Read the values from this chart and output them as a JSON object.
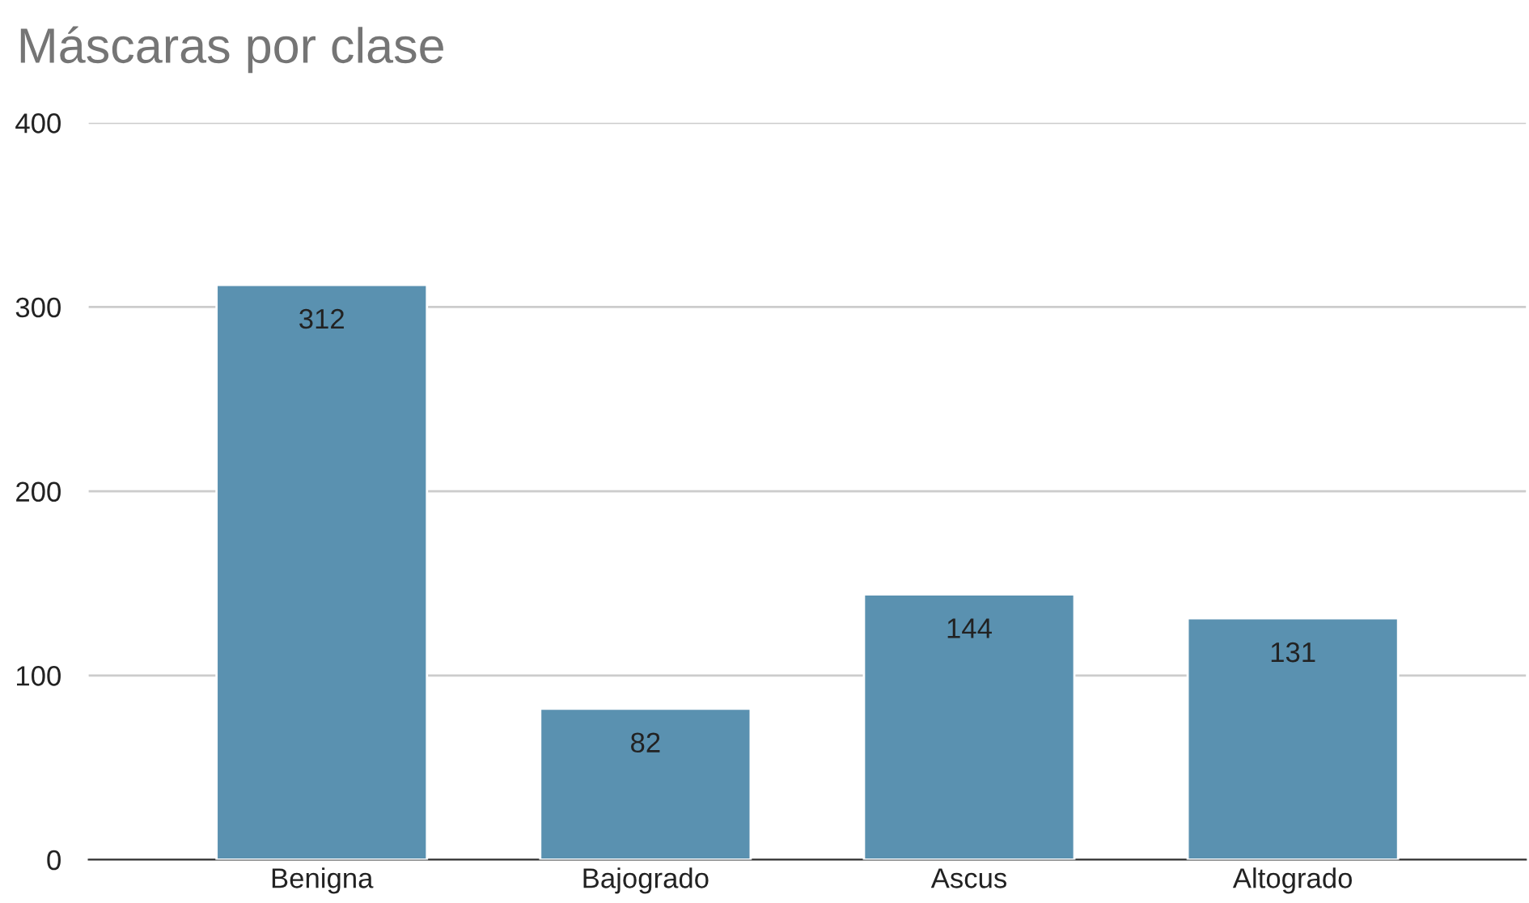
{
  "chart_data": {
    "type": "bar",
    "title": "Máscaras por clase",
    "categories": [
      "Benigna",
      "Bajogrado",
      "Ascus",
      "Altogrado"
    ],
    "values": [
      312,
      82,
      144,
      131
    ],
    "color": "#5a91b0",
    "ylim": [
      0,
      400
    ],
    "yticks": [
      0,
      100,
      200,
      300,
      400
    ],
    "grid": "y",
    "data_labels": true
  }
}
